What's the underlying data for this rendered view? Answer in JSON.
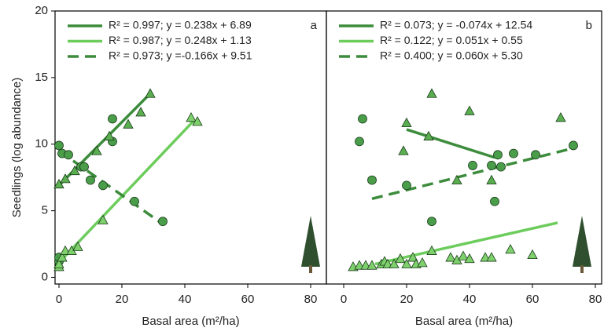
{
  "chart_data": [
    {
      "type": "scatter",
      "panel_label": "a",
      "ylabel": "Seedlings (log abundance)",
      "xlabel": "Basal area (m²/ha)",
      "xlim": [
        -1.25,
        85
      ],
      "ylim": [
        -0.5,
        20
      ],
      "xticks": [
        0,
        20,
        40,
        60,
        80
      ],
      "yticks": [
        0,
        5,
        10,
        15,
        20
      ],
      "series": [
        {
          "name": "R² = 0.997; y = 0.238x + 6.89",
          "kind": "line",
          "style": "solid",
          "color": "#3c8c3c",
          "x": [
            0,
            29
          ],
          "values": [
            6.9,
            13.8
          ]
        },
        {
          "name": "R² = 0.987; y = 0.248x + 1.13",
          "kind": "line",
          "style": "solid",
          "color": "#6ccc5c",
          "x": [
            0,
            43
          ],
          "values": [
            1.1,
            11.8
          ]
        },
        {
          "name": "R² = 0.973; y =-0.166x + 9.51",
          "kind": "line",
          "style": "dashed",
          "color": "#3c8c3c",
          "x": [
            0,
            33
          ],
          "values": [
            9.5,
            4.0
          ]
        },
        {
          "kind": "scatter",
          "marker": "circle",
          "color": "#4a9e4a",
          "x": [
            0,
            1,
            3,
            7,
            8,
            10,
            14,
            17,
            17,
            24,
            33,
            0,
            0
          ],
          "values": [
            9.9,
            9.3,
            9.2,
            8.3,
            8.3,
            7.3,
            6.9,
            11.9,
            10.2,
            5.7,
            4.2,
            1.2,
            1.5
          ]
        },
        {
          "kind": "scatter",
          "marker": "triangle",
          "color": "#5aae50",
          "x": [
            0,
            2,
            5,
            12,
            16,
            22,
            26,
            29
          ],
          "values": [
            7.0,
            7.4,
            8.0,
            9.5,
            10.6,
            11.5,
            12.4,
            13.8
          ]
        },
        {
          "kind": "scatter",
          "marker": "triangle",
          "color": "#7ed06c",
          "x": [
            0,
            0,
            1,
            2,
            4,
            6,
            14,
            42,
            44
          ],
          "values": [
            0.8,
            1.0,
            1.5,
            2.0,
            2.0,
            2.3,
            4.3,
            12.0,
            11.7
          ]
        }
      ]
    },
    {
      "type": "scatter",
      "panel_label": "b",
      "xlabel": "Basal area (m²/ha)",
      "xlim": [
        -5.5,
        82
      ],
      "ylim": [
        -0.5,
        20
      ],
      "xticks": [
        0,
        20,
        40,
        60,
        80
      ],
      "series": [
        {
          "name": "R² = 0.073; y = -0.074x + 12.54",
          "kind": "line",
          "style": "solid",
          "color": "#3c8c3c",
          "x": [
            20,
            48
          ],
          "values": [
            11.1,
            9.0
          ]
        },
        {
          "name": "R² = 0.122; y = 0.051x + 0.55",
          "kind": "line",
          "style": "solid",
          "color": "#6ccc5c",
          "x": [
            10,
            68
          ],
          "values": [
            1.0,
            4.1
          ]
        },
        {
          "name": "R² = 0.400; y = 0.060x + 5.30",
          "kind": "line",
          "style": "dashed",
          "color": "#3c8c3c",
          "x": [
            9,
            73
          ],
          "values": [
            5.9,
            9.7
          ]
        },
        {
          "kind": "scatter",
          "marker": "circle",
          "color": "#4a9e4a",
          "x": [
            5,
            6,
            9,
            20,
            28,
            41,
            47,
            48,
            49,
            50,
            54,
            61,
            73
          ],
          "values": [
            10.2,
            11.9,
            7.3,
            6.9,
            4.2,
            8.4,
            8.4,
            5.7,
            9.2,
            8.3,
            9.3,
            9.2,
            9.9
          ]
        },
        {
          "kind": "scatter",
          "marker": "triangle",
          "color": "#5aae50",
          "x": [
            19,
            20,
            27,
            28,
            36,
            40,
            47,
            69
          ],
          "values": [
            9.5,
            11.6,
            10.6,
            13.8,
            7.3,
            12.5,
            7.3,
            12.0
          ]
        },
        {
          "kind": "scatter",
          "marker": "triangle",
          "color": "#7ed06c",
          "x": [
            3,
            5,
            7,
            9,
            12,
            13,
            14,
            16,
            18,
            20,
            22,
            23,
            25,
            28,
            34,
            36,
            38,
            40,
            45,
            47,
            53,
            60
          ],
          "values": [
            0.8,
            0.9,
            0.9,
            0.9,
            1.0,
            1.2,
            1.0,
            1.0,
            1.4,
            1.0,
            1.5,
            1.0,
            1.1,
            2.0,
            1.5,
            1.3,
            1.6,
            1.4,
            1.5,
            1.5,
            2.1,
            1.7
          ]
        }
      ]
    }
  ]
}
